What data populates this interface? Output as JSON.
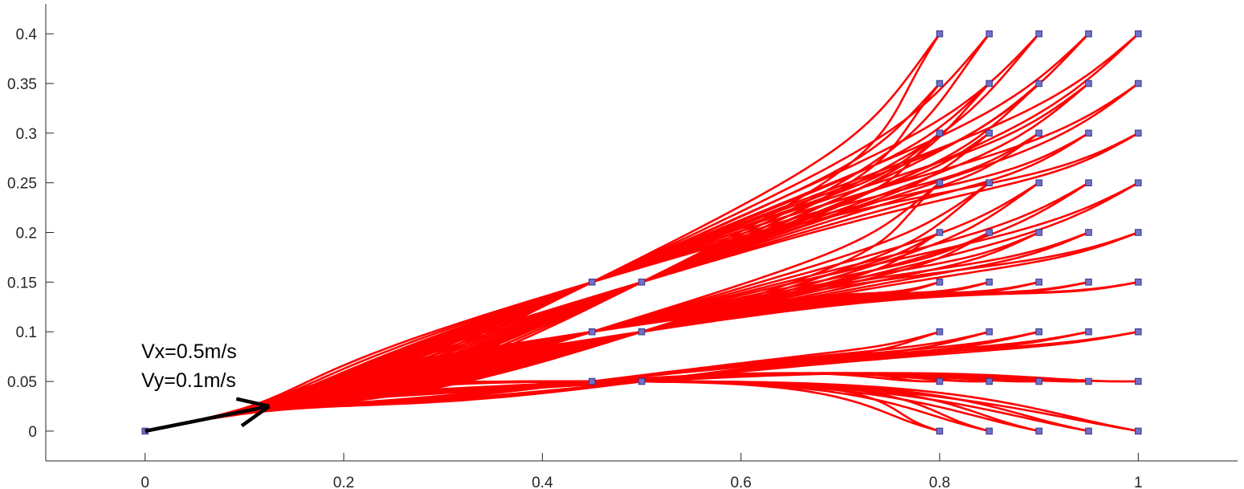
{
  "chart_data": {
    "type": "line",
    "title": "",
    "xlabel": "",
    "ylabel": "",
    "xlim": [
      -0.1,
      1.1
    ],
    "ylim": [
      -0.03,
      0.43
    ],
    "grid": false,
    "x_ticks": [
      0,
      0.2,
      0.4,
      0.6,
      0.8,
      1
    ],
    "x_tick_labels": [
      "0",
      "0.2",
      "0.4",
      "0.6",
      "0.8",
      "1"
    ],
    "y_ticks": [
      0,
      0.05,
      0.1,
      0.15,
      0.2,
      0.25,
      0.3,
      0.35,
      0.4
    ],
    "y_tick_labels": [
      "0",
      "0.05",
      "0.1",
      "0.15",
      "0.2",
      "0.25",
      "0.3",
      "0.35",
      "0.4"
    ],
    "start": {
      "x": 0,
      "y": 0,
      "vx": 0.5,
      "vy": 0.1
    },
    "start_velocity_arrow": {
      "from": [
        0,
        0
      ],
      "to": [
        0.125,
        0.025
      ]
    },
    "annotation": [
      "Vx=0.5m/s",
      "Vy=0.1m/s"
    ],
    "annotation_anchor": {
      "x": 0.0,
      "y": 0.08
    },
    "waypoints": [
      {
        "x": 0.45,
        "y": 0.05
      },
      {
        "x": 0.5,
        "y": 0.05
      },
      {
        "x": 0.45,
        "y": 0.1
      },
      {
        "x": 0.5,
        "y": 0.1
      },
      {
        "x": 0.45,
        "y": 0.15
      },
      {
        "x": 0.5,
        "y": 0.15
      }
    ],
    "targets_x": [
      0.8,
      0.85,
      0.9,
      0.95,
      1.0
    ],
    "targets_y": [
      0,
      0.05,
      0.1,
      0.15,
      0.2,
      0.25,
      0.3,
      0.35,
      0.4
    ],
    "groups": [
      {
        "waypoint_y": 0.05,
        "target_y": [
          0,
          0.05,
          0.1
        ]
      },
      {
        "waypoint_y": 0.1,
        "target_y": [
          0.15,
          0.2,
          0.25
        ]
      },
      {
        "waypoint_y": 0.15,
        "target_y": [
          0.3,
          0.35,
          0.4
        ]
      }
    ],
    "line_color": "#ff0000",
    "marker_fill": "#7070c8",
    "marker_edge": "#303080",
    "arrow_color": "#000000",
    "axis_color": "#262626",
    "background": "#ffffff"
  }
}
